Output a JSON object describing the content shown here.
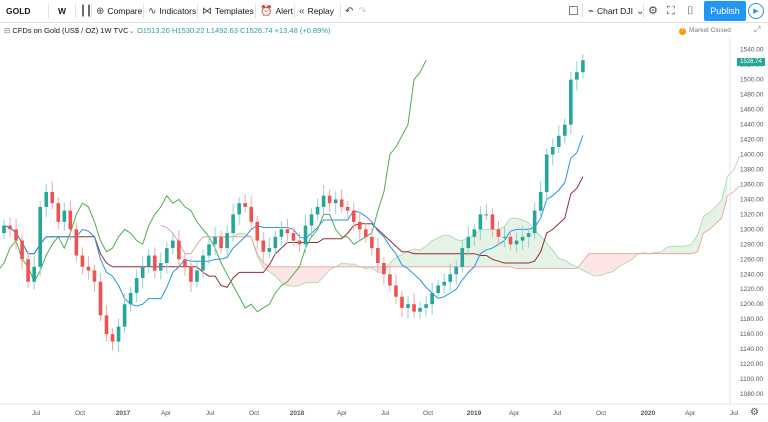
{
  "toolbar": {
    "symbol": "GOLD",
    "interval": "W",
    "compare": "Compare",
    "indicators": "Indicators",
    "templates": "Templates",
    "alert": "Alert",
    "replay": "Replay",
    "chart_name": "Chart DJI",
    "publish": "Publish"
  },
  "legend": {
    "title": "CFDs on Gold (US$ / OZ)",
    "interval": "1W",
    "source": "TVC",
    "open": "O1513.26",
    "high": "H1530.22",
    "low": "L1492.63",
    "close": "C1526.74",
    "change": "+13.48 (+0.89%)"
  },
  "status": {
    "market": "Market Closed"
  },
  "price_tag": "1526.74",
  "chart_data": {
    "type": "line",
    "symbol": "GOLD",
    "y_ticks": [
      1540,
      1520,
      1500,
      1480,
      1460,
      1440,
      1420,
      1400,
      1380,
      1360,
      1340,
      1320,
      1300,
      1280,
      1260,
      1240,
      1220,
      1200,
      1180,
      1160,
      1140,
      1120,
      1100,
      1080
    ],
    "x_ticks": [
      "Jul",
      "Oct",
      "2017",
      "Apr",
      "Jul",
      "Oct",
      "2018",
      "Apr",
      "Jul",
      "Oct",
      "2019",
      "Apr",
      "Jul",
      "Oct",
      "2020",
      "Apr",
      "Jul"
    ],
    "ylim": [
      1080,
      1545
    ],
    "last_price": 1526.74,
    "close_series": [
      1305,
      1300,
      1285,
      1260,
      1230,
      1250,
      1330,
      1350,
      1335,
      1310,
      1325,
      1300,
      1265,
      1250,
      1245,
      1230,
      1185,
      1160,
      1150,
      1170,
      1200,
      1215,
      1235,
      1250,
      1265,
      1245,
      1255,
      1275,
      1285,
      1260,
      1250,
      1230,
      1245,
      1265,
      1280,
      1290,
      1275,
      1295,
      1320,
      1335,
      1330,
      1310,
      1285,
      1270,
      1275,
      1290,
      1300,
      1295,
      1285,
      1280,
      1305,
      1320,
      1330,
      1345,
      1335,
      1340,
      1330,
      1325,
      1310,
      1300,
      1290,
      1275,
      1255,
      1240,
      1225,
      1210,
      1195,
      1200,
      1190,
      1195,
      1200,
      1215,
      1225,
      1230,
      1240,
      1250,
      1275,
      1290,
      1300,
      1320,
      1320,
      1300,
      1290,
      1290,
      1280,
      1285,
      1290,
      1295,
      1325,
      1350,
      1400,
      1410,
      1425,
      1440,
      1500,
      1510,
      1526
    ]
  }
}
